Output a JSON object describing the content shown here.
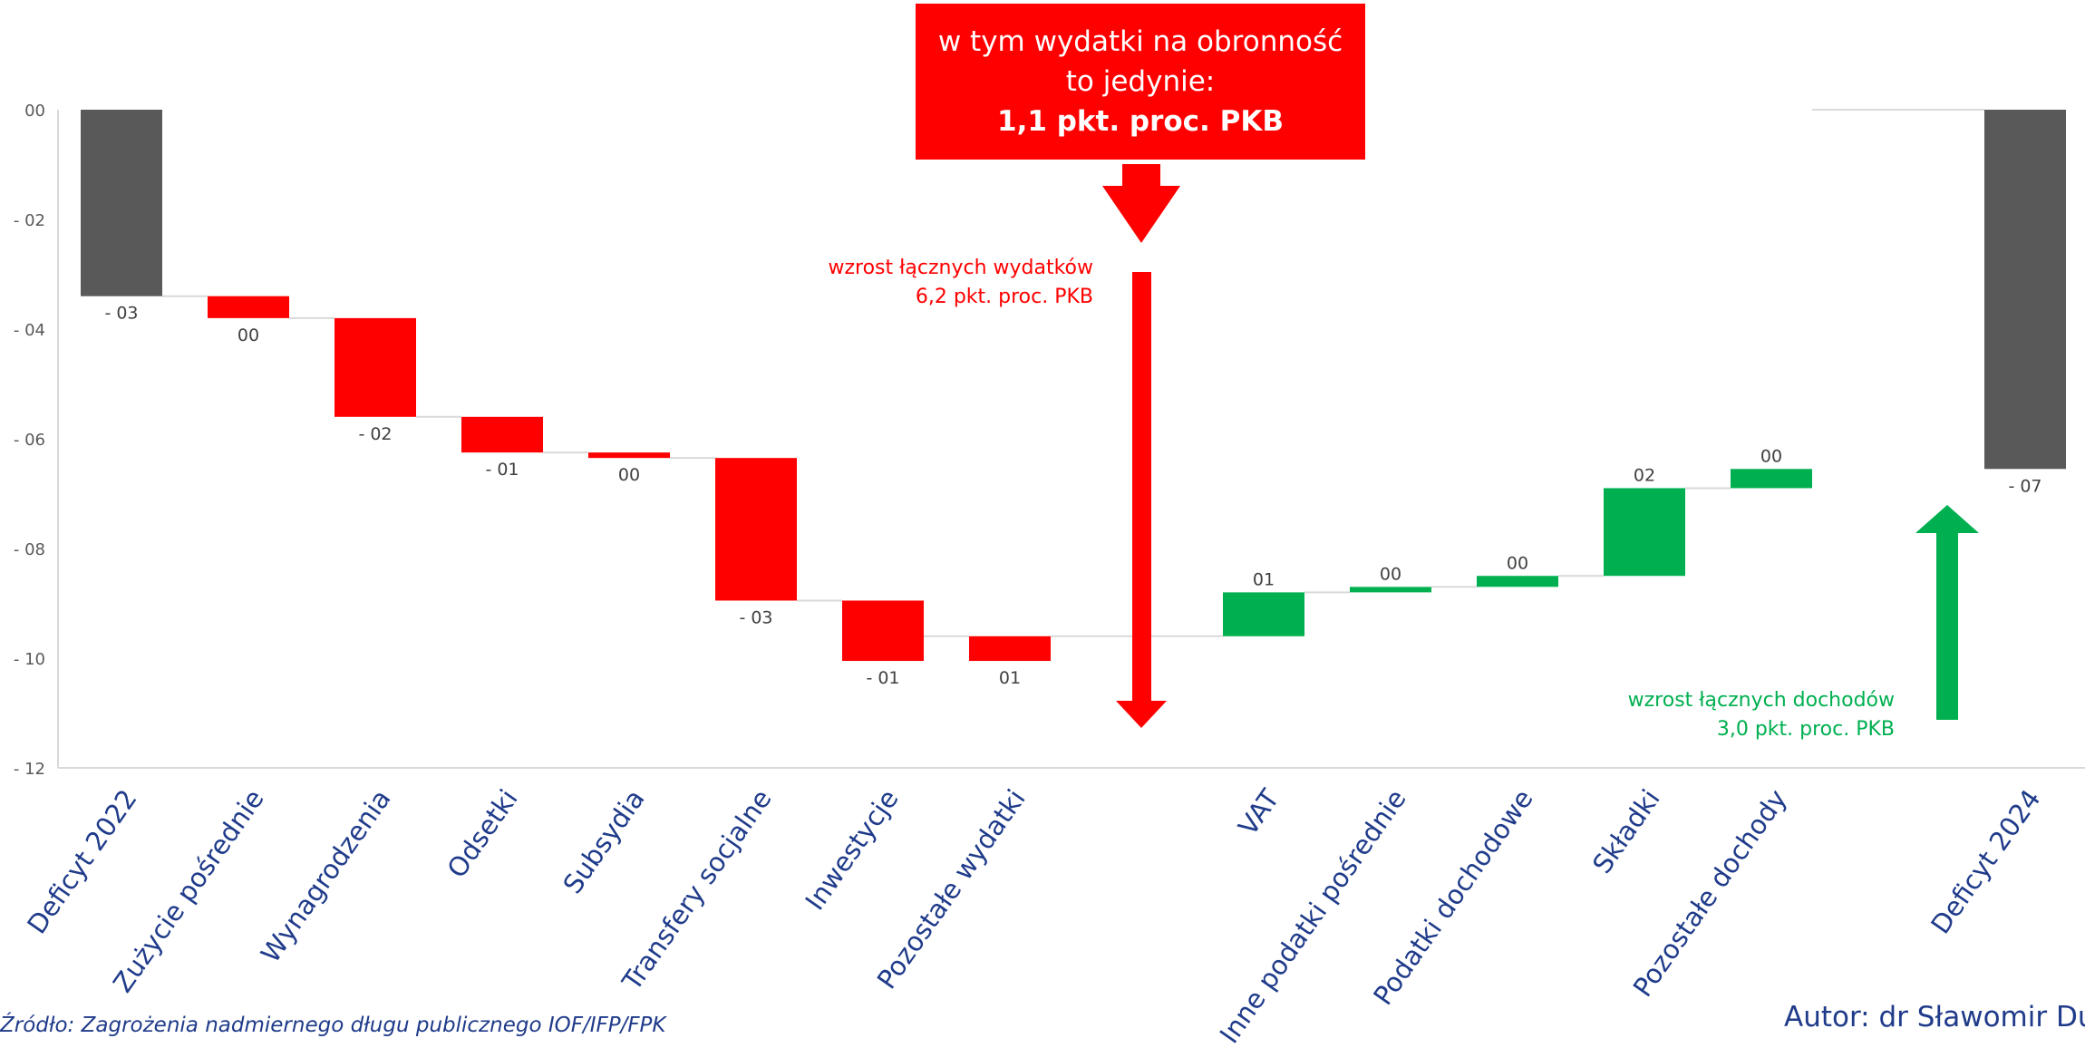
{
  "chart_data": {
    "type": "bar",
    "subtype": "waterfall",
    "categories": [
      "Deficyt 2022",
      "Zużycie pośrednie",
      "Wynagrodzenia",
      "Odsetki",
      "Subsydia",
      "Transfery socjalne",
      "Inwestycje",
      "Pozostałe wydatki",
      "",
      "VAT",
      "Inne podatki pośrednie",
      "Podatki dochodowe",
      "Składki",
      "Pozostałe dochody",
      "",
      "Deficyt 2024"
    ],
    "bars": [
      {
        "category": "Deficyt 2022",
        "kind": "total",
        "start": 0,
        "end": -3.4,
        "label": "- 03"
      },
      {
        "category": "Zużycie pośrednie",
        "kind": "expense",
        "start": -3.4,
        "end": -3.8,
        "label": "00"
      },
      {
        "category": "Wynagrodzenia",
        "kind": "expense",
        "start": -3.8,
        "end": -5.6,
        "label": "- 02"
      },
      {
        "category": "Odsetki",
        "kind": "expense",
        "start": -5.6,
        "end": -6.25,
        "label": "- 01"
      },
      {
        "category": "Subsydia",
        "kind": "expense",
        "start": -6.25,
        "end": -6.35,
        "label": "00"
      },
      {
        "category": "Transfery socjalne",
        "kind": "expense",
        "start": -6.35,
        "end": -8.95,
        "label": "- 03"
      },
      {
        "category": "Inwestycje",
        "kind": "expense",
        "start": -8.95,
        "end": -10.05,
        "label": "- 01"
      },
      {
        "category": "Pozostałe wydatki",
        "kind": "expense",
        "start": -9.6,
        "end": -10.05,
        "label": "01"
      },
      {
        "category": "VAT",
        "kind": "revenue",
        "start": -9.6,
        "end": -8.8,
        "label": "01"
      },
      {
        "category": "Inne podatki pośrednie",
        "kind": "revenue",
        "start": -8.8,
        "end": -8.7,
        "label": "00"
      },
      {
        "category": "Podatki dochodowe",
        "kind": "revenue",
        "start": -8.7,
        "end": -8.5,
        "label": "00"
      },
      {
        "category": "Składki",
        "kind": "revenue",
        "start": -8.5,
        "end": -6.9,
        "label": "02"
      },
      {
        "category": "Pozostałe dochody",
        "kind": "revenue",
        "start": -6.9,
        "end": -6.55,
        "label": "00"
      },
      {
        "category": "Deficyt 2024",
        "kind": "total",
        "start": 0,
        "end": -6.55,
        "label": "- 07"
      }
    ],
    "yticks": [
      0,
      -2,
      -4,
      -6,
      -8,
      -10,
      -12
    ],
    "ytick_labels": [
      "00",
      "- 02",
      "- 04",
      "- 06",
      "- 08",
      "- 10",
      "- 12"
    ],
    "ylim": [
      -12,
      0
    ],
    "colors": {
      "total": "#595959",
      "expense": "#ff0000",
      "revenue": "#00b050"
    },
    "annotations": {
      "callout": {
        "line1": "w tym wydatki na obronność",
        "line2": "to jedynie:",
        "line3": "1,1 pkt. proc. PKB"
      },
      "expenses": {
        "line1": "wzrost łącznych wydatków",
        "line2": "6,2 pkt. proc. PKB"
      },
      "revenues": {
        "line1": "wzrost łącznych dochodów",
        "line2": "3,0 pkt. proc. PKB"
      }
    }
  },
  "source": "Źródło: Zagrożenia nadmiernego długu publicznego IOF/IFP/FPK",
  "author": "Autor: dr Sławomir Dudek"
}
